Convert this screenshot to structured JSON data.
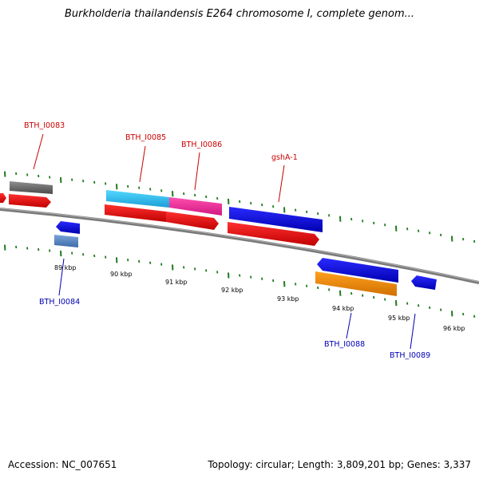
{
  "title": "Burkholderia thailandensis E264 chromosome I, complete genom...",
  "footer": {
    "accession": "Accession: NC_007651",
    "summary": "Topology: circular; Length: 3,809,201 bp; Genes: 3,337"
  },
  "colors": {
    "backbone": "#8a8a8a",
    "tick": "#1e7a1e",
    "forward_label": "#cc0000",
    "reverse_label": "#0000b3"
  },
  "scale": {
    "unit": "kbp",
    "labels": [
      "89 kbp",
      "90 kbp",
      "91 kbp",
      "92 kbp",
      "93 kbp",
      "94 kbp",
      "95 kbp",
      "96 kbp"
    ]
  },
  "genes": [
    {
      "label": "BTH_I0083",
      "strand": "forward",
      "color": "#cc0000"
    },
    {
      "label": "BTH_I0084",
      "strand": "reverse",
      "color": "#0000b3"
    },
    {
      "label": "BTH_I0085",
      "strand": "forward",
      "color": "#cc0000"
    },
    {
      "label": "BTH_I0086",
      "strand": "forward",
      "color": "#cc0000"
    },
    {
      "label": "gshA-1",
      "strand": "forward",
      "color": "#cc0000"
    },
    {
      "label": "BTH_I0088",
      "strand": "reverse",
      "color": "#0000b3"
    },
    {
      "label": "BTH_I0089",
      "strand": "reverse",
      "color": "#0000b3"
    }
  ]
}
